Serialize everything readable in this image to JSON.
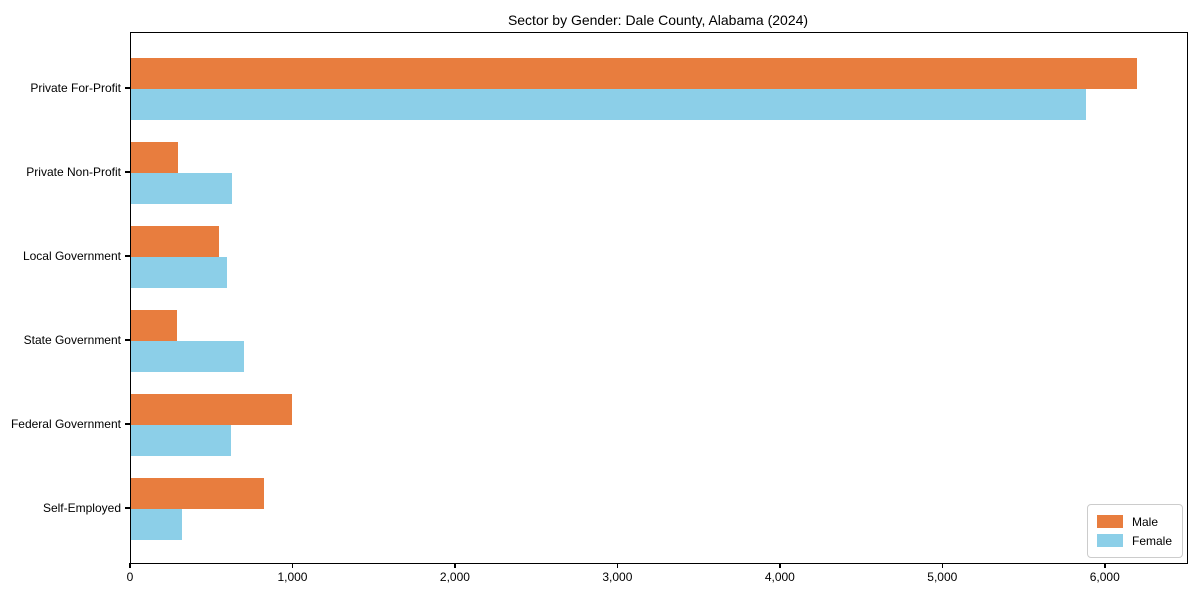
{
  "title": "Sector by Gender: Dale County, Alabama (2024)",
  "colors": {
    "male": "#e87d3e",
    "female": "#8ccfe8",
    "axis": "#000000",
    "legend_border": "#cccccc",
    "background": "#ffffff"
  },
  "legend": {
    "position": "lower right",
    "items": [
      {
        "label": "Male",
        "color_key": "male"
      },
      {
        "label": "Female",
        "color_key": "female"
      }
    ]
  },
  "chart_data": {
    "type": "bar",
    "orientation": "horizontal",
    "title": "Sector by Gender: Dale County, Alabama (2024)",
    "xlabel": "",
    "ylabel": "",
    "categories": [
      "Private For-Profit",
      "Private Non-Profit",
      "Local Government",
      "State Government",
      "Federal Government",
      "Self-Employed"
    ],
    "series": [
      {
        "name": "Male",
        "values": [
          6190,
          290,
          540,
          285,
          990,
          820
        ]
      },
      {
        "name": "Female",
        "values": [
          5880,
          620,
          590,
          695,
          615,
          315
        ]
      }
    ],
    "xlim": [
      0,
      6500
    ],
    "xticks": [
      0,
      1000,
      2000,
      3000,
      4000,
      5000,
      6000
    ],
    "xtick_labels": [
      "0",
      "1,000",
      "2,000",
      "3,000",
      "4,000",
      "5,000",
      "6,000"
    ],
    "grid": false,
    "legend_position": "lower right"
  }
}
